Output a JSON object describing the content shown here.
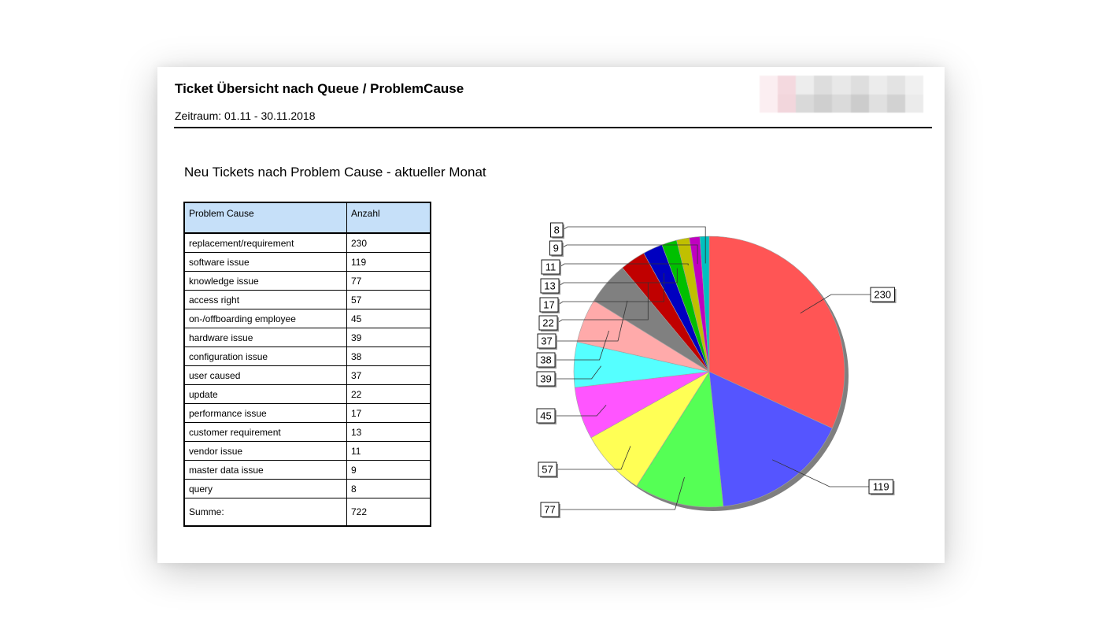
{
  "report": {
    "title": "Ticket Übersicht nach Queue / ProblemCause",
    "period": "Zeitraum: 01.11 - 30.11.2018"
  },
  "logo": {
    "colors": [
      "#fbeef1",
      "#f4d9df",
      "#ededed",
      "#dddddd",
      "#e8e8e8",
      "#dedede",
      "#ececec",
      "#e3e3e3",
      "#f0f0f0",
      "#fbeef1",
      "#f2d6dc",
      "#d9d9d9",
      "#cfcfcf",
      "#dadada",
      "#cccccc",
      "#e0e0e0",
      "#d2d2d2",
      "#ebebeb"
    ]
  },
  "table": {
    "headers": [
      "Problem Cause",
      "Anzahl"
    ],
    "sum_label": "Summe:",
    "sum_value": "722"
  },
  "chart_data": {
    "type": "pie",
    "title": "Neu Tickets nach Problem Cause - aktueller Monat",
    "labels": [
      "replacement/requirement",
      "software issue",
      "knowledge issue",
      "access right",
      "on-/offboarding employee",
      "hardware issue",
      "configuration issue",
      "user caused",
      "update",
      "performance issue",
      "customer requirement",
      "vendor issue",
      "master data issue",
      "query"
    ],
    "values": [
      230,
      119,
      77,
      57,
      45,
      39,
      38,
      37,
      22,
      17,
      13,
      11,
      9,
      8
    ],
    "colors": [
      "#ff5555",
      "#5555ff",
      "#55ff55",
      "#ffff55",
      "#ff55ff",
      "#55ffff",
      "#ffaaaa",
      "#808080",
      "#c00000",
      "#0000c0",
      "#00c000",
      "#c0c000",
      "#c000c0",
      "#00c0c0"
    ],
    "total": 722,
    "legend": "none (data labels with leader lines)"
  }
}
